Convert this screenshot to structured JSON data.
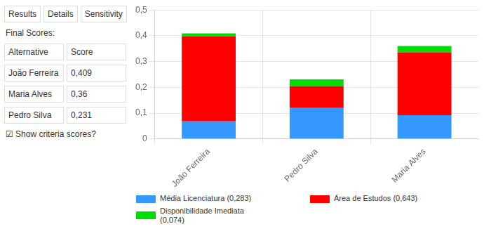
{
  "chart_data": {
    "type": "bar",
    "stacked": true,
    "categories": [
      "João Ferreira",
      "Pedro Silva",
      "Maria Alves"
    ],
    "series": [
      {
        "name": "Média Licenciatura (0,283)",
        "color": "#3399ff",
        "values": [
          0.068,
          0.12,
          0.092
        ]
      },
      {
        "name": "Área de Estudos (0,643)",
        "color": "#ff0000",
        "values": [
          0.33,
          0.084,
          0.244
        ]
      },
      {
        "name": "Disponibilidade Imediata\n(0,074)",
        "color": "#00dd00",
        "values": [
          0.011,
          0.027,
          0.024
        ]
      }
    ],
    "ylim": [
      0,
      0.5
    ],
    "yticks": [
      0,
      {
        "value": 0.1,
        "label": "0,1"
      },
      {
        "value": 0.2,
        "label": "0,2"
      },
      {
        "value": 0.3,
        "label": "0,3"
      },
      {
        "value": 0.4,
        "label": "0,4"
      },
      {
        "value": 0.5,
        "label": "0,5"
      }
    ],
    "grid": true,
    "legend": "bottom",
    "annotations": [
      [
        "Results",
        "Details",
        "Sensitivity"
      ],
      [
        "Final Scores:"
      ],
      [
        "Alternative",
        "Score"
      ],
      [
        "João Ferreira",
        "0,409"
      ],
      [
        "Maria Alves",
        "0,36"
      ],
      [
        "Pedro Silva",
        "0,231"
      ],
      [
        "☑ Show criteria scores?"
      ]
    ]
  }
}
